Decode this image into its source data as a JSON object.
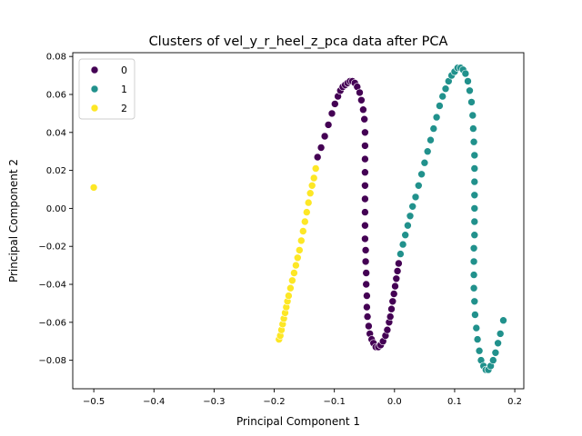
{
  "chart_data": {
    "type": "scatter",
    "title": "Clusters of vel_y_r_heel_z_pca data after PCA",
    "xlabel": "Principal Component 1",
    "ylabel": "Principal Component 2",
    "xlim": [
      -0.535,
      0.215
    ],
    "ylim": [
      -0.095,
      0.082
    ],
    "x_ticks": [
      -0.5,
      -0.4,
      -0.3,
      -0.2,
      -0.1,
      0.0,
      0.1,
      0.2
    ],
    "x_tick_labels": [
      "−0.5",
      "−0.4",
      "−0.3",
      "−0.2",
      "−0.1",
      "0.0",
      "0.1",
      "0.2"
    ],
    "y_ticks": [
      -0.08,
      -0.06,
      -0.04,
      -0.02,
      0.0,
      0.02,
      0.04,
      0.06,
      0.08
    ],
    "y_tick_labels": [
      "−0.08",
      "−0.06",
      "−0.04",
      "−0.02",
      "0.00",
      "0.02",
      "0.04",
      "0.06",
      "0.08"
    ],
    "grid": false,
    "legend_placement": "top-left",
    "series": [
      {
        "name": "0",
        "color": "#440154",
        "x": [
          -0.128,
          -0.122,
          -0.116,
          -0.11,
          -0.104,
          -0.099,
          -0.094,
          -0.09,
          -0.086,
          -0.082,
          -0.078,
          -0.074,
          -0.07,
          -0.066,
          -0.062,
          -0.058,
          -0.055,
          -0.052,
          -0.05,
          -0.049,
          -0.049,
          -0.049,
          -0.049,
          -0.049,
          -0.049,
          -0.049,
          -0.049,
          -0.049,
          -0.048,
          -0.048,
          -0.047,
          -0.047,
          -0.046,
          -0.046,
          -0.045,
          -0.043,
          -0.041,
          -0.038,
          -0.035,
          -0.031,
          -0.027,
          -0.023,
          -0.019,
          -0.015,
          -0.012,
          -0.009,
          -0.007,
          -0.005,
          -0.003,
          -0.001,
          0.001,
          0.003,
          0.005,
          0.007
        ],
        "y": [
          0.027,
          0.032,
          0.038,
          0.044,
          0.05,
          0.055,
          0.059,
          0.062,
          0.064,
          0.065,
          0.066,
          0.067,
          0.067,
          0.066,
          0.064,
          0.061,
          0.057,
          0.052,
          0.047,
          0.04,
          0.033,
          0.026,
          0.019,
          0.012,
          0.005,
          -0.002,
          -0.009,
          -0.016,
          -0.022,
          -0.028,
          -0.034,
          -0.04,
          -0.046,
          -0.052,
          -0.057,
          -0.062,
          -0.066,
          -0.069,
          -0.071,
          -0.073,
          -0.073,
          -0.072,
          -0.07,
          -0.067,
          -0.064,
          -0.06,
          -0.057,
          -0.053,
          -0.049,
          -0.045,
          -0.041,
          -0.037,
          -0.033,
          -0.029
        ]
      },
      {
        "name": "1",
        "color": "#21918c",
        "x": [
          0.01,
          0.014,
          0.018,
          0.022,
          0.026,
          0.03,
          0.035,
          0.04,
          0.045,
          0.05,
          0.055,
          0.06,
          0.065,
          0.07,
          0.075,
          0.08,
          0.085,
          0.09,
          0.095,
          0.1,
          0.105,
          0.11,
          0.114,
          0.118,
          0.122,
          0.125,
          0.128,
          0.13,
          0.131,
          0.132,
          0.133,
          0.133,
          0.133,
          0.133,
          0.133,
          0.133,
          0.133,
          0.132,
          0.132,
          0.132,
          0.132,
          0.133,
          0.134,
          0.136,
          0.138,
          0.141,
          0.144,
          0.148,
          0.152,
          0.156,
          0.16,
          0.164,
          0.168,
          0.172,
          0.176,
          0.181
        ],
        "y": [
          -0.024,
          -0.019,
          -0.014,
          -0.009,
          -0.004,
          0.001,
          0.006,
          0.012,
          0.018,
          0.024,
          0.03,
          0.036,
          0.042,
          0.048,
          0.054,
          0.059,
          0.063,
          0.067,
          0.07,
          0.072,
          0.074,
          0.074,
          0.073,
          0.071,
          0.067,
          0.062,
          0.056,
          0.049,
          0.042,
          0.035,
          0.028,
          0.021,
          0.014,
          0.007,
          0.0,
          -0.007,
          -0.014,
          -0.021,
          -0.028,
          -0.035,
          -0.042,
          -0.049,
          -0.056,
          -0.063,
          -0.069,
          -0.075,
          -0.08,
          -0.083,
          -0.085,
          -0.085,
          -0.083,
          -0.08,
          -0.076,
          -0.071,
          -0.066,
          -0.059
        ]
      },
      {
        "name": "2",
        "color": "#fde725",
        "x": [
          -0.5,
          -0.192,
          -0.19,
          -0.188,
          -0.186,
          -0.184,
          -0.182,
          -0.18,
          -0.178,
          -0.176,
          -0.173,
          -0.17,
          -0.167,
          -0.164,
          -0.161,
          -0.158,
          -0.155,
          -0.152,
          -0.149,
          -0.146,
          -0.143,
          -0.14,
          -0.137,
          -0.134,
          -0.131
        ],
        "y": [
          0.011,
          -0.069,
          -0.067,
          -0.064,
          -0.061,
          -0.058,
          -0.055,
          -0.052,
          -0.049,
          -0.046,
          -0.042,
          -0.038,
          -0.034,
          -0.03,
          -0.026,
          -0.022,
          -0.017,
          -0.012,
          -0.007,
          -0.002,
          0.003,
          0.008,
          0.012,
          0.016,
          0.021
        ]
      }
    ]
  }
}
